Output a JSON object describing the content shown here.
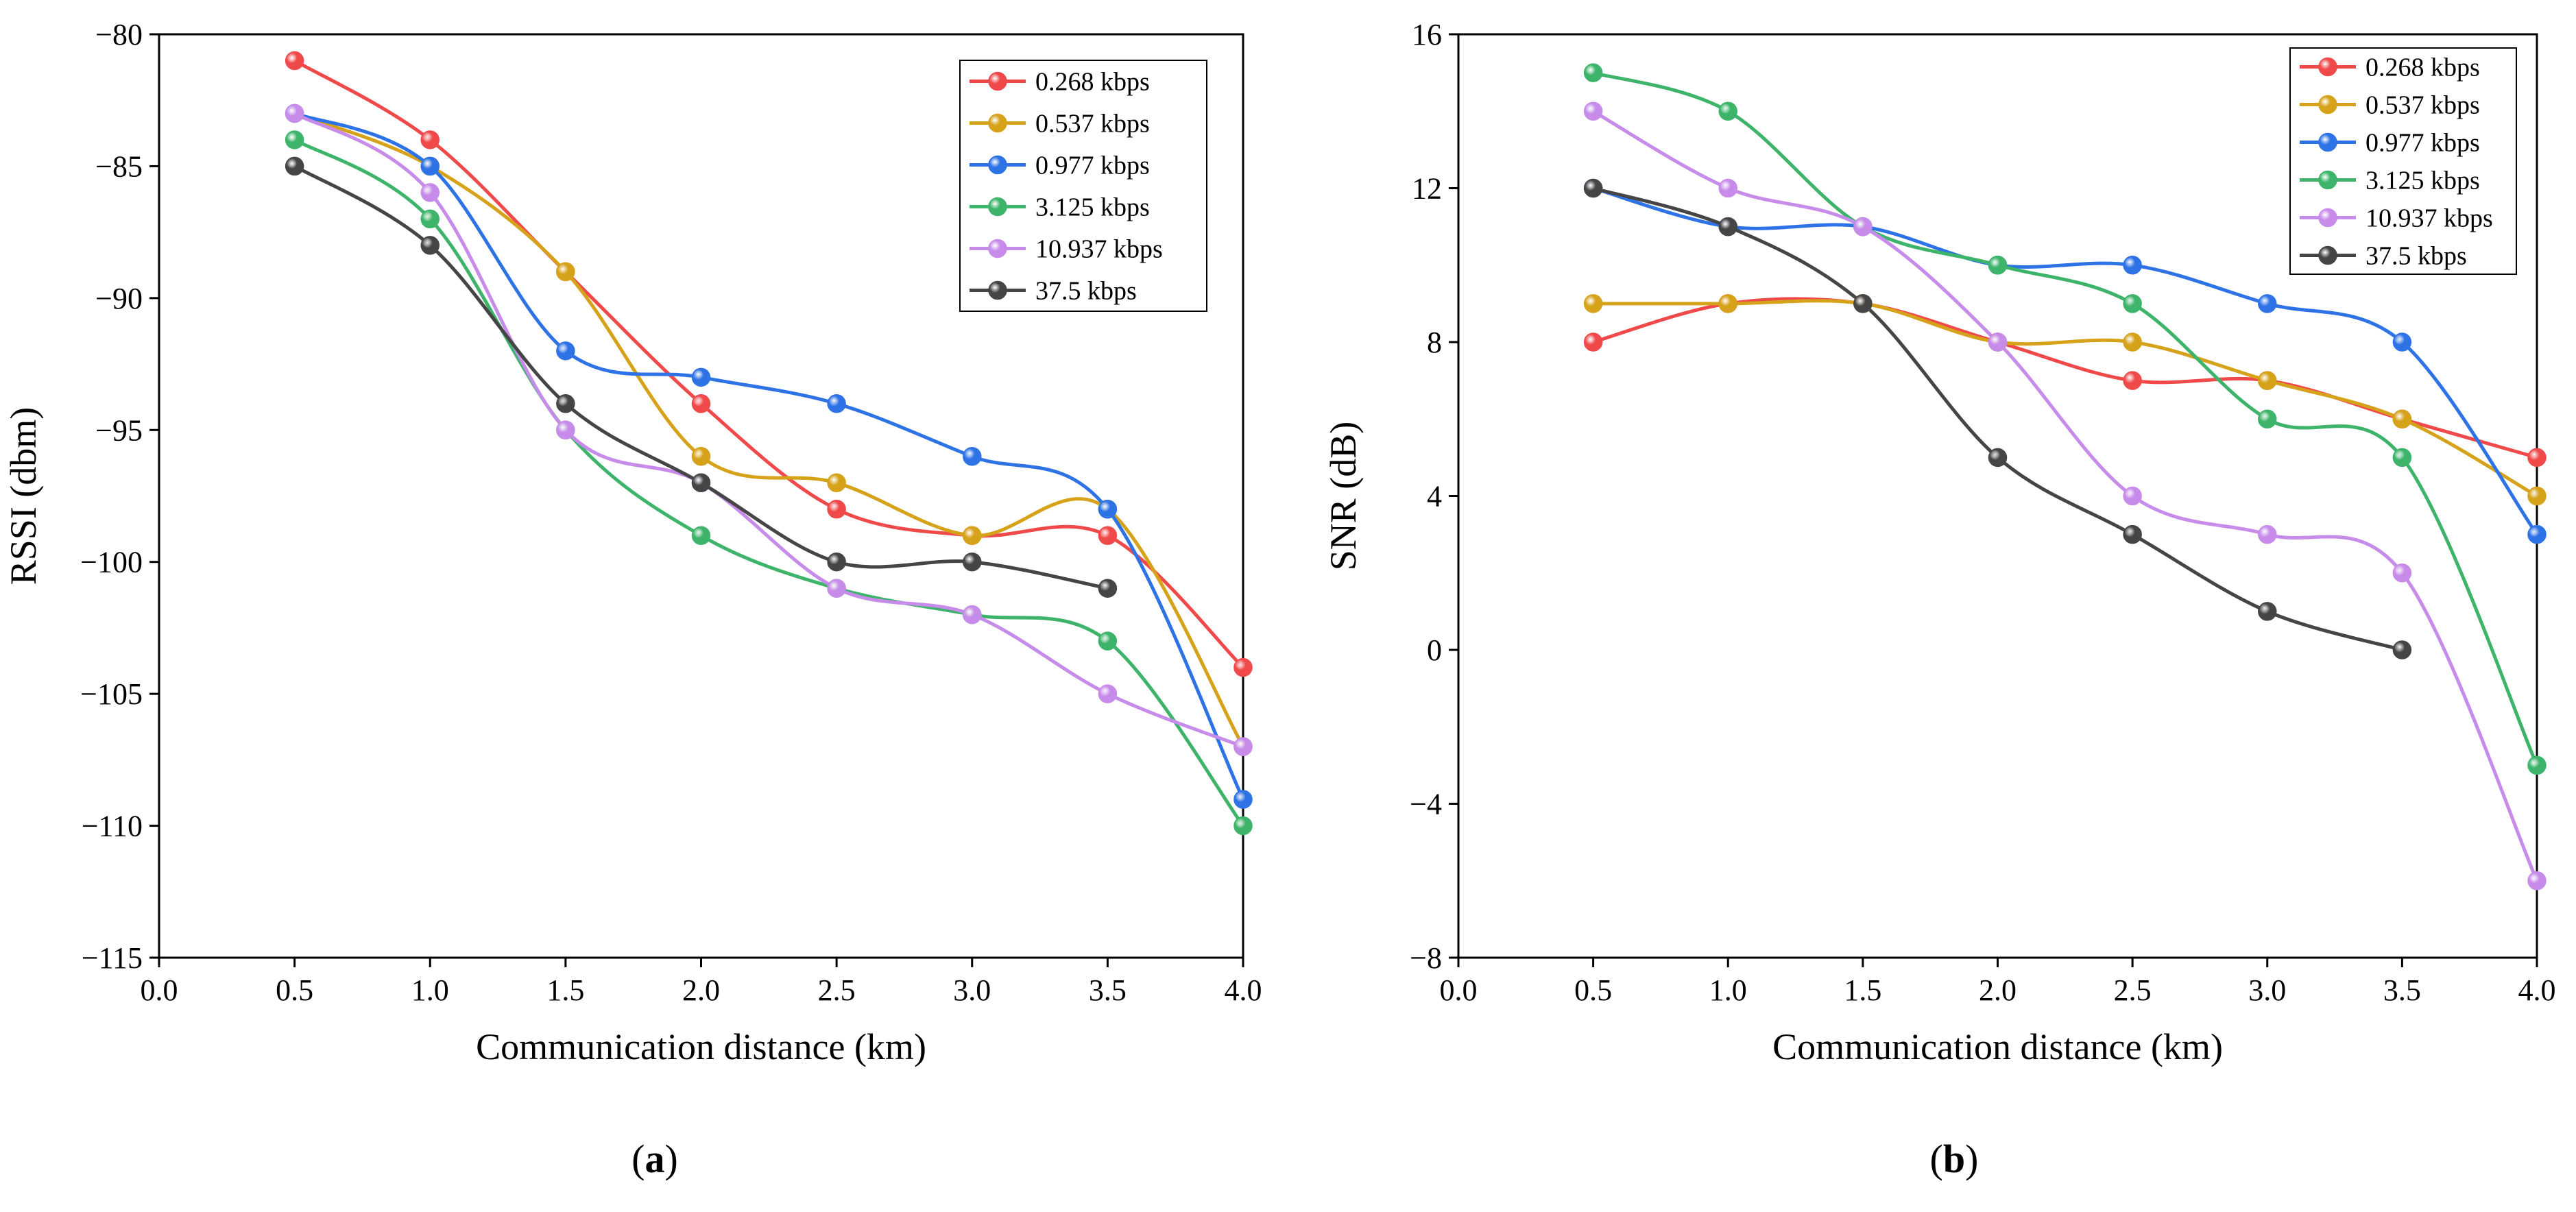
{
  "colors": {
    "0.268 kbps": "#F0494A",
    "0.537 kbps": "#D6A21A",
    "0.977 kbps": "#2E73E6",
    "3.125 kbps": "#3DB46A",
    "10.937 kbps": "#C78BEA",
    "37.5 kbps": "#454545"
  },
  "chart_data": [
    {
      "type": "line",
      "caption_letter": "a",
      "xlabel": "Communication distance (km)",
      "ylabel": "RSSI (dbm)",
      "xlim": [
        0.0,
        4.0
      ],
      "ylim": [
        -115,
        -80
      ],
      "xticks": [
        "0.0",
        "0.5",
        "1.0",
        "1.5",
        "2.0",
        "2.5",
        "3.0",
        "3.5",
        "4.0"
      ],
      "yticks": [
        "-80",
        "-85",
        "-90",
        "-95",
        "-100",
        "-105",
        "-110",
        "-115"
      ],
      "legend_position": "top-right",
      "series": [
        {
          "name": "0.268 kbps",
          "x": [
            0.5,
            1.0,
            1.5,
            2.0,
            2.5,
            3.0,
            3.5,
            4.0
          ],
          "values": [
            -81,
            -84,
            -89,
            -94,
            -98,
            -99,
            -99,
            -104
          ]
        },
        {
          "name": "0.537 kbps",
          "x": [
            0.5,
            1.0,
            1.5,
            2.0,
            2.5,
            3.0,
            3.5,
            4.0
          ],
          "values": [
            -83,
            -85,
            -89,
            -96,
            -97,
            -99,
            -98,
            -107
          ]
        },
        {
          "name": "0.977 kbps",
          "x": [
            0.5,
            1.0,
            1.5,
            2.0,
            2.5,
            3.0,
            3.5,
            4.0
          ],
          "values": [
            -83,
            -85,
            -92,
            -93,
            -94,
            -96,
            -98,
            -109
          ]
        },
        {
          "name": "3.125 kbps",
          "x": [
            0.5,
            1.0,
            1.5,
            2.0,
            2.5,
            3.0,
            3.5,
            4.0
          ],
          "values": [
            -84,
            -87,
            -95,
            -99,
            -101,
            -102,
            -103,
            -110
          ]
        },
        {
          "name": "10.937 kbps",
          "x": [
            0.5,
            1.0,
            1.5,
            2.0,
            2.5,
            3.0,
            3.5,
            4.0
          ],
          "values": [
            -83,
            -86,
            -95,
            -97,
            -101,
            -102,
            -105,
            -107
          ]
        },
        {
          "name": "37.5 kbps",
          "x": [
            0.5,
            1.0,
            1.5,
            2.0,
            2.5,
            3.0,
            3.5
          ],
          "values": [
            -85,
            -88,
            -94,
            -97,
            -100,
            -100,
            -101
          ]
        }
      ]
    },
    {
      "type": "line",
      "caption_letter": "b",
      "xlabel": "Communication distance (km)",
      "ylabel": "SNR (dB)",
      "xlim": [
        0.0,
        4.0
      ],
      "ylim": [
        -8,
        16
      ],
      "xticks": [
        "0.0",
        "0.5",
        "1.0",
        "1.5",
        "2.0",
        "2.5",
        "3.0",
        "3.5",
        "4.0"
      ],
      "yticks": [
        "16",
        "12",
        "8",
        "4",
        "0",
        "-4",
        "-8"
      ],
      "legend_position": "top-right",
      "series": [
        {
          "name": "0.268 kbps",
          "x": [
            0.5,
            1.0,
            1.5,
            2.0,
            2.5,
            3.0,
            3.5,
            4.0
          ],
          "values": [
            8,
            9,
            9,
            8,
            7,
            7,
            6,
            5
          ]
        },
        {
          "name": "0.537 kbps",
          "x": [
            0.5,
            1.0,
            1.5,
            2.0,
            2.5,
            3.0,
            3.5,
            4.0
          ],
          "values": [
            9,
            9,
            9,
            8,
            8,
            7,
            6,
            4
          ]
        },
        {
          "name": "0.977 kbps",
          "x": [
            0.5,
            1.0,
            1.5,
            2.0,
            2.5,
            3.0,
            3.5,
            4.0
          ],
          "values": [
            12,
            11,
            11,
            10,
            10,
            9,
            8,
            3
          ]
        },
        {
          "name": "3.125 kbps",
          "x": [
            0.5,
            1.0,
            1.5,
            2.0,
            2.5,
            3.0,
            3.5,
            4.0
          ],
          "values": [
            15,
            14,
            11,
            10,
            9,
            6,
            5,
            -3
          ]
        },
        {
          "name": "10.937 kbps",
          "x": [
            0.5,
            1.0,
            1.5,
            2.0,
            2.5,
            3.0,
            3.5,
            4.0
          ],
          "values": [
            14,
            12,
            11,
            8,
            4,
            3,
            2,
            -6
          ]
        },
        {
          "name": "37.5 kbps",
          "x": [
            0.5,
            1.0,
            1.5,
            2.0,
            2.5,
            3.0,
            3.5
          ],
          "values": [
            12,
            11,
            9,
            5,
            3,
            1,
            0
          ]
        }
      ]
    }
  ]
}
